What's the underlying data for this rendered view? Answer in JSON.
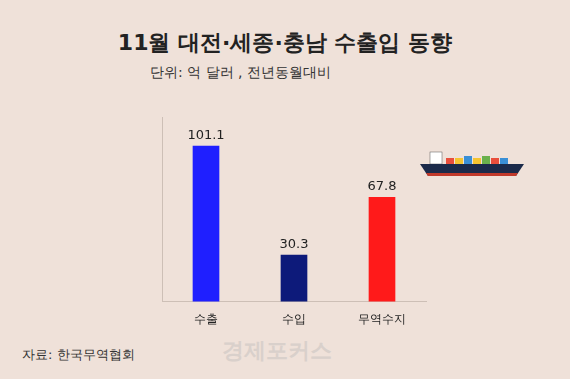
{
  "chart_data": {
    "type": "bar",
    "title": "11월 대전·세종·충남 수출입 동향",
    "subtitle": "단위: 억 달러 , 전년동월대비",
    "categories": [
      "수출",
      "수입",
      "무역수지"
    ],
    "values": [
      101.1,
      30.3,
      67.8
    ],
    "colors": [
      "#1f1fff",
      "#0d1a7a",
      "#ff1a1a"
    ],
    "ylim": [
      0,
      120
    ],
    "grid": false,
    "data_labels": true,
    "tick_labels": "x",
    "source": "자료: 한국무역협회",
    "watermark": "경제포커스"
  }
}
